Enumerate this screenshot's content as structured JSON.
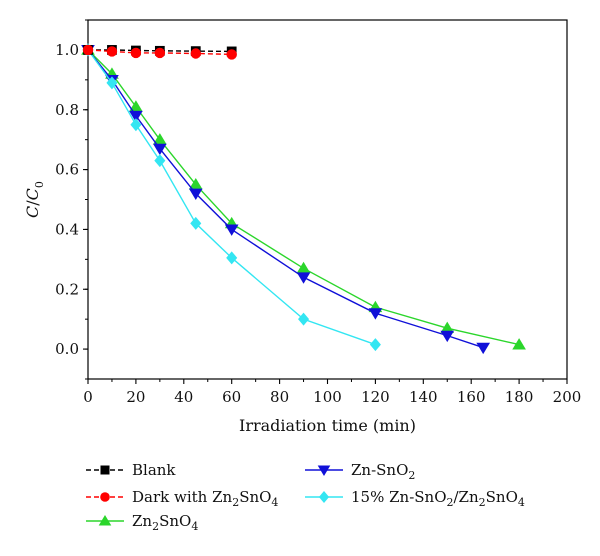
{
  "chart_data": {
    "type": "line",
    "title": "",
    "xlabel": "Irradiation time (min)",
    "ylabel_html": "C/C<tspan font-size='11' dy='5'>0</tspan>",
    "ylabel": "C/C0",
    "xlim": [
      0,
      200
    ],
    "ylim": [
      -0.1,
      1.1
    ],
    "xticks": [
      0,
      20,
      40,
      60,
      80,
      100,
      120,
      140,
      160,
      180,
      200
    ],
    "yticks": [
      0.0,
      0.2,
      0.4,
      0.6,
      0.8,
      1.0
    ],
    "ytick_labels": [
      "0.0",
      "0.2",
      "0.4",
      "0.6",
      "0.8",
      "1.0"
    ],
    "grid": false,
    "legend_position": "bottom",
    "series": [
      {
        "name": "Blank",
        "label_parts": [
          {
            "t": "Blank"
          }
        ],
        "marker": "square",
        "color": "#000000",
        "line_color": "#000000",
        "dashed": true,
        "x": [
          0,
          10,
          20,
          30,
          45,
          60
        ],
        "y": [
          1.0,
          1.0,
          0.998,
          0.997,
          0.996,
          0.995
        ]
      },
      {
        "name": "Dark with Zn2SnO4",
        "label_parts": [
          {
            "t": "Dark with Zn"
          },
          {
            "t": "2",
            "sub": true
          },
          {
            "t": "SnO"
          },
          {
            "t": "4",
            "sub": true
          }
        ],
        "marker": "circle",
        "color": "#ff0000",
        "line_color": "#ff0000",
        "dashed": true,
        "x": [
          0,
          10,
          20,
          30,
          45,
          60
        ],
        "y": [
          1.0,
          0.995,
          0.99,
          0.99,
          0.988,
          0.985
        ]
      },
      {
        "name": "Zn2SnO4",
        "label_parts": [
          {
            "t": "Zn"
          },
          {
            "t": "2",
            "sub": true
          },
          {
            "t": "SnO"
          },
          {
            "t": "4",
            "sub": true
          }
        ],
        "marker": "triangle-up",
        "color": "#2bd62b",
        "line_color": "#2bd62b",
        "dashed": false,
        "x": [
          0,
          10,
          20,
          30,
          45,
          60,
          90,
          120,
          150,
          180
        ],
        "y": [
          1.0,
          0.92,
          0.81,
          0.7,
          0.55,
          0.42,
          0.27,
          0.14,
          0.07,
          0.015
        ]
      },
      {
        "name": "Zn-SnO2",
        "label_parts": [
          {
            "t": "Zn-SnO"
          },
          {
            "t": "2",
            "sub": true
          }
        ],
        "marker": "triangle-down",
        "color": "#1010d8",
        "line_color": "#1010d8",
        "dashed": false,
        "x": [
          0,
          10,
          20,
          30,
          45,
          60,
          90,
          120,
          150,
          165
        ],
        "y": [
          1.0,
          0.9,
          0.78,
          0.67,
          0.52,
          0.4,
          0.24,
          0.12,
          0.045,
          0.005
        ]
      },
      {
        "name": "15% Zn-SnO2/Zn2SnO4",
        "label_parts": [
          {
            "t": "15% Zn-SnO"
          },
          {
            "t": "2",
            "sub": true
          },
          {
            "t": "/Zn"
          },
          {
            "t": "2",
            "sub": true
          },
          {
            "t": "SnO"
          },
          {
            "t": "4",
            "sub": true
          }
        ],
        "marker": "diamond",
        "color": "#33e6f2",
        "line_color": "#33e6f2",
        "dashed": false,
        "x": [
          0,
          10,
          20,
          30,
          45,
          60,
          90,
          120
        ],
        "y": [
          1.0,
          0.89,
          0.75,
          0.63,
          0.42,
          0.305,
          0.1,
          0.015
        ]
      }
    ]
  }
}
